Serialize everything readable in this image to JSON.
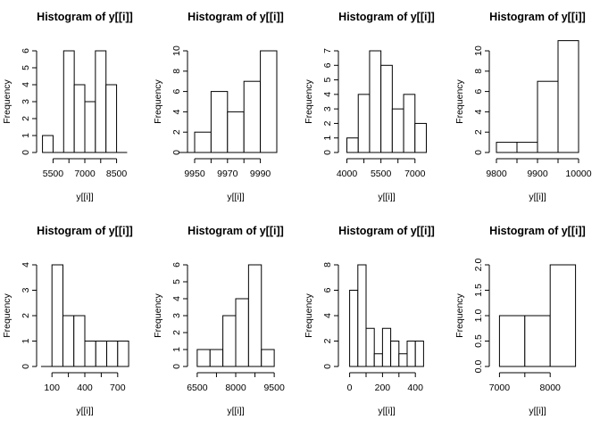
{
  "chart_data": [
    {
      "type": "bar",
      "title": "Histogram of y[[i]]",
      "xlabel": "y[[i]]",
      "ylabel": "Frequency",
      "bins": [
        [
          5000,
          5500
        ],
        [
          5500,
          6000
        ],
        [
          6000,
          6500
        ],
        [
          6500,
          7000
        ],
        [
          7000,
          7500
        ],
        [
          7500,
          8000
        ],
        [
          8000,
          8500
        ],
        [
          8500,
          9000
        ]
      ],
      "values": [
        1,
        0,
        6,
        4,
        3,
        6,
        4,
        0
      ],
      "xlim": [
        5000,
        9000
      ],
      "xticks": [
        5500,
        7000,
        8500
      ],
      "xticklabels": [
        "5500",
        "7000",
        "8500"
      ],
      "ylim": [
        0,
        6
      ],
      "yticks": [
        0,
        1,
        2,
        3,
        4,
        5,
        6
      ],
      "yticklabels": [
        "0",
        "1",
        "2",
        "3",
        "4",
        "5",
        "6"
      ]
    },
    {
      "type": "bar",
      "title": "Histogram of y[[i]]",
      "xlabel": "y[[i]]",
      "ylabel": "Frequency",
      "bins": [
        [
          9940,
          9950
        ],
        [
          9950,
          9960
        ],
        [
          9960,
          9970
        ],
        [
          9970,
          9980
        ],
        [
          9980,
          9990
        ],
        [
          9990,
          10000
        ]
      ],
      "values": [
        0,
        2,
        6,
        4,
        7,
        10
      ],
      "xlim": [
        9950,
        10000
      ],
      "xticks": [
        9950,
        9970,
        9990
      ],
      "xticklabels": [
        "9950",
        "9970",
        "9990"
      ],
      "ylim": [
        0,
        10
      ],
      "yticks": [
        0,
        2,
        4,
        6,
        8,
        10
      ],
      "yticklabels": [
        "0",
        "2",
        "4",
        "6",
        "8",
        "10"
      ]
    },
    {
      "type": "bar",
      "title": "Histogram of y[[i]]",
      "xlabel": "y[[i]]",
      "ylabel": "Frequency",
      "bins": [
        [
          4000,
          4500
        ],
        [
          4500,
          5000
        ],
        [
          5000,
          5500
        ],
        [
          5500,
          6000
        ],
        [
          6000,
          6500
        ],
        [
          6500,
          7000
        ],
        [
          7000,
          7500
        ]
      ],
      "values": [
        1,
        4,
        7,
        6,
        3,
        4,
        2
      ],
      "xlim": [
        4000,
        7500
      ],
      "xticks": [
        4000,
        5500,
        7000
      ],
      "xticklabels": [
        "4000",
        "5500",
        "7000"
      ],
      "ylim": [
        0,
        7
      ],
      "yticks": [
        0,
        1,
        2,
        3,
        4,
        5,
        6,
        7
      ],
      "yticklabels": [
        "0",
        "1",
        "2",
        "3",
        "4",
        "5",
        "6",
        "7"
      ]
    },
    {
      "type": "bar",
      "title": "Histogram of y[[i]]",
      "xlabel": "y[[i]]",
      "ylabel": "Frequency",
      "bins": [
        [
          9800,
          9850
        ],
        [
          9850,
          9900
        ],
        [
          9900,
          9950
        ],
        [
          9950,
          10000
        ]
      ],
      "values": [
        1,
        1,
        7,
        11
      ],
      "xlim": [
        9800,
        10000
      ],
      "xticks": [
        9800,
        9900,
        10000
      ],
      "xticklabels": [
        "9800",
        "9900",
        "10000"
      ],
      "ylim": [
        0,
        11
      ],
      "yticks": [
        0,
        2,
        4,
        6,
        8,
        10
      ],
      "yticklabels": [
        "0",
        "2",
        "4",
        "6",
        "8",
        "10"
      ]
    },
    {
      "type": "bar",
      "title": "Histogram of y[[i]]",
      "xlabel": "y[[i]]",
      "ylabel": "Frequency",
      "bins": [
        [
          0,
          100
        ],
        [
          100,
          200
        ],
        [
          200,
          300
        ],
        [
          300,
          400
        ],
        [
          400,
          500
        ],
        [
          500,
          600
        ],
        [
          600,
          700
        ],
        [
          700,
          800
        ]
      ],
      "values": [
        0,
        4,
        2,
        2,
        1,
        1,
        1,
        1
      ],
      "xlim": [
        100,
        800
      ],
      "xticks": [
        100,
        400,
        700
      ],
      "xticklabels": [
        "100",
        "400",
        "700"
      ],
      "ylim": [
        0,
        4
      ],
      "yticks": [
        0,
        1,
        2,
        3,
        4
      ],
      "yticklabels": [
        "0",
        "1",
        "2",
        "3",
        "4"
      ]
    },
    {
      "type": "bar",
      "title": "Histogram of y[[i]]",
      "xlabel": "y[[i]]",
      "ylabel": "Frequency",
      "bins": [
        [
          6500,
          7000
        ],
        [
          7000,
          7500
        ],
        [
          7500,
          8000
        ],
        [
          8000,
          8500
        ],
        [
          8500,
          9000
        ],
        [
          9000,
          9500
        ]
      ],
      "values": [
        1,
        1,
        3,
        4,
        6,
        1
      ],
      "xlim": [
        6500,
        9500
      ],
      "xticks": [
        6500,
        8000,
        9500
      ],
      "xticklabels": [
        "6500",
        "8000",
        "9500"
      ],
      "ylim": [
        0,
        6
      ],
      "yticks": [
        0,
        1,
        2,
        3,
        4,
        5,
        6
      ],
      "yticklabels": [
        "0",
        "1",
        "2",
        "3",
        "4",
        "5",
        "6"
      ]
    },
    {
      "type": "bar",
      "title": "Histogram of y[[i]]",
      "xlabel": "y[[i]]",
      "ylabel": "Frequency",
      "bins": [
        [
          0,
          50
        ],
        [
          50,
          100
        ],
        [
          100,
          150
        ],
        [
          150,
          200
        ],
        [
          200,
          250
        ],
        [
          250,
          300
        ],
        [
          300,
          350
        ],
        [
          350,
          400
        ],
        [
          400,
          450
        ]
      ],
      "values": [
        6,
        8,
        3,
        1,
        3,
        2,
        1,
        2,
        2
      ],
      "xlim": [
        0,
        450
      ],
      "xticks": [
        0,
        200,
        400
      ],
      "xticklabels": [
        "0",
        "200",
        "400"
      ],
      "ylim": [
        0,
        8
      ],
      "yticks": [
        0,
        2,
        4,
        6,
        8
      ],
      "yticklabels": [
        "0",
        "2",
        "4",
        "6",
        "8"
      ]
    },
    {
      "type": "bar",
      "title": "Histogram of y[[i]]",
      "xlabel": "y[[i]]",
      "ylabel": "Frequency",
      "bins": [
        [
          7000,
          7500
        ],
        [
          7500,
          8000
        ],
        [
          8000,
          8500
        ]
      ],
      "values": [
        1,
        1,
        2
      ],
      "xlim": [
        7000,
        8500
      ],
      "xticks": [
        7000,
        8000
      ],
      "xticklabels": [
        "7000",
        "8000"
      ],
      "ylim": [
        0,
        2
      ],
      "yticks": [
        0,
        0.5,
        1,
        1.5,
        2
      ],
      "yticklabels": [
        "0.0",
        "0.5",
        "1.0",
        "1.5",
        "2.0"
      ]
    }
  ]
}
